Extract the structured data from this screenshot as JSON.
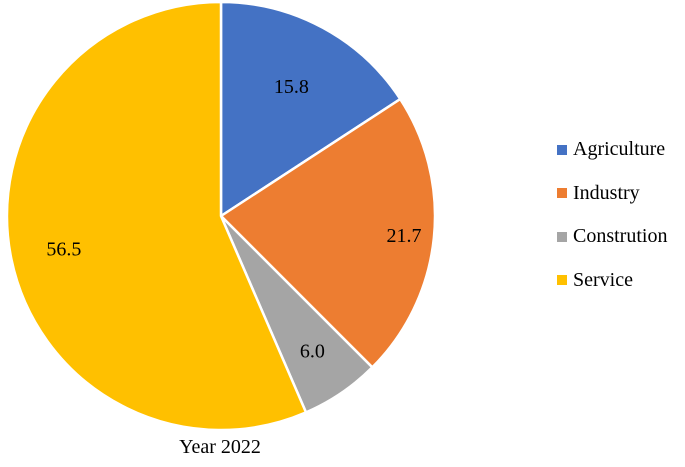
{
  "chart_data": {
    "type": "pie",
    "caption": "Year 2022",
    "slices": [
      {
        "label": "Agriculture",
        "value": 15.8,
        "color": "#4472C4"
      },
      {
        "label": "Industry",
        "value": 21.7,
        "color": "#ED7D31"
      },
      {
        "label": "Constrution",
        "value": 6.0,
        "color": "#A5A5A5"
      },
      {
        "label": "Service",
        "value": 56.5,
        "color": "#FFC000"
      }
    ],
    "legend_position": "right"
  }
}
